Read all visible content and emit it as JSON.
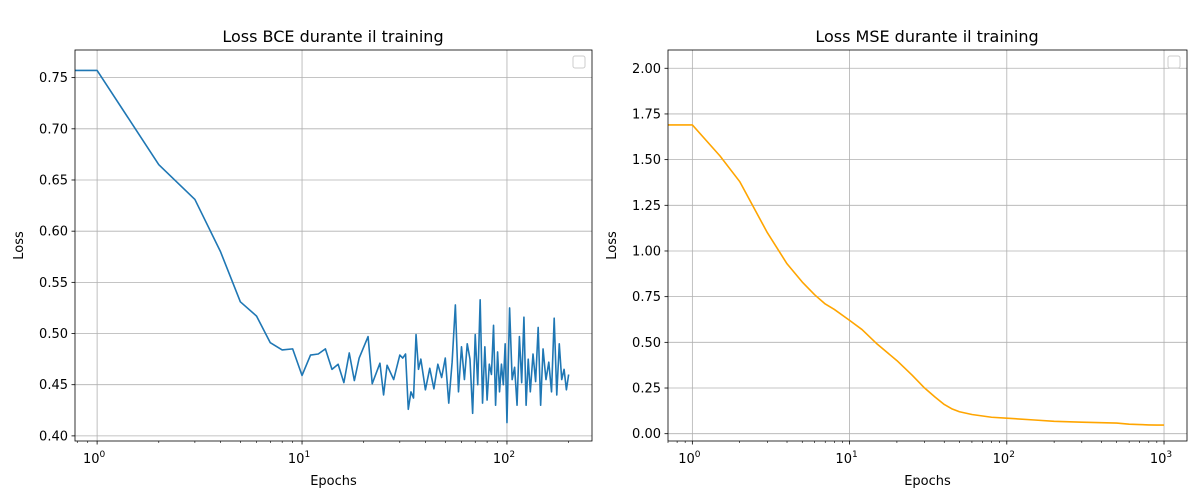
{
  "chart_data": [
    {
      "type": "line",
      "title": "Loss BCE durante il training",
      "xlabel": "Epochs",
      "ylabel": "Loss",
      "xscale": "log",
      "xlim": [
        0.78,
        260
      ],
      "ylim": [
        0.395,
        0.777
      ],
      "grid": true,
      "legend": "top-right, empty",
      "color": "#1f77b4",
      "x_ticks": [
        {
          "value": 1,
          "base": "10",
          "exp": "0"
        },
        {
          "value": 10,
          "base": "10",
          "exp": "1"
        },
        {
          "value": 100,
          "base": "10",
          "exp": "2"
        }
      ],
      "y_ticks": [
        {
          "value": 0.4,
          "label": "0.40"
        },
        {
          "value": 0.45,
          "label": "0.45"
        },
        {
          "value": 0.5,
          "label": "0.50"
        },
        {
          "value": 0.55,
          "label": "0.55"
        },
        {
          "value": 0.6,
          "label": "0.60"
        },
        {
          "value": 0.65,
          "label": "0.65"
        },
        {
          "value": 0.7,
          "label": "0.70"
        },
        {
          "value": 0.75,
          "label": "0.75"
        }
      ],
      "series": [
        {
          "x": [
            0.78,
            1,
            2,
            3,
            4,
            5,
            6,
            7,
            8,
            9,
            10,
            11,
            12,
            13,
            14,
            15,
            16,
            17,
            18,
            19,
            21,
            22,
            24,
            25,
            26,
            28,
            30,
            31,
            32,
            33,
            34,
            35,
            36,
            37,
            38,
            40,
            42,
            44,
            46,
            48,
            50,
            52,
            54,
            56,
            58,
            60,
            62,
            64,
            66,
            68,
            70,
            72,
            74,
            76,
            78,
            80,
            82,
            84,
            86,
            88,
            90,
            92,
            94,
            96,
            98,
            100,
            103,
            106,
            109,
            112,
            115,
            118,
            121,
            124,
            127,
            130,
            134,
            138,
            142,
            146,
            150,
            155,
            160,
            165,
            170,
            175,
            180,
            185,
            190,
            195,
            200
          ],
          "values": [
            0.757,
            0.757,
            0.665,
            0.631,
            0.58,
            0.531,
            0.517,
            0.491,
            0.484,
            0.485,
            0.459,
            0.479,
            0.48,
            0.485,
            0.465,
            0.47,
            0.452,
            0.481,
            0.454,
            0.476,
            0.497,
            0.451,
            0.471,
            0.44,
            0.469,
            0.455,
            0.479,
            0.476,
            0.48,
            0.426,
            0.443,
            0.437,
            0.499,
            0.465,
            0.475,
            0.445,
            0.466,
            0.446,
            0.47,
            0.457,
            0.476,
            0.432,
            0.472,
            0.528,
            0.443,
            0.487,
            0.455,
            0.49,
            0.475,
            0.422,
            0.499,
            0.45,
            0.533,
            0.432,
            0.487,
            0.435,
            0.47,
            0.46,
            0.508,
            0.43,
            0.482,
            0.443,
            0.47,
            0.45,
            0.49,
            0.413,
            0.525,
            0.455,
            0.467,
            0.43,
            0.497,
            0.452,
            0.516,
            0.43,
            0.475,
            0.443,
            0.48,
            0.453,
            0.506,
            0.43,
            0.485,
            0.455,
            0.472,
            0.443,
            0.515,
            0.44,
            0.49,
            0.455,
            0.465,
            0.445,
            0.46
          ]
        }
      ]
    },
    {
      "type": "line",
      "title": "Loss MSE durante il training",
      "xlabel": "Epochs",
      "ylabel": "Loss",
      "xscale": "log",
      "xlim": [
        0.7,
        1400
      ],
      "ylim": [
        -0.04,
        2.1
      ],
      "grid": true,
      "legend": "top-right, empty",
      "color": "#ffa500",
      "x_ticks": [
        {
          "value": 1,
          "base": "10",
          "exp": "0"
        },
        {
          "value": 10,
          "base": "10",
          "exp": "1"
        },
        {
          "value": 100,
          "base": "10",
          "exp": "2"
        },
        {
          "value": 1000,
          "base": "10",
          "exp": "3"
        }
      ],
      "y_ticks": [
        {
          "value": 0.0,
          "label": "0.00"
        },
        {
          "value": 0.25,
          "label": "0.25"
        },
        {
          "value": 0.5,
          "label": "0.50"
        },
        {
          "value": 0.75,
          "label": "0.75"
        },
        {
          "value": 1.0,
          "label": "1.00"
        },
        {
          "value": 1.25,
          "label": "1.25"
        },
        {
          "value": 1.5,
          "label": "1.50"
        },
        {
          "value": 1.75,
          "label": "1.75"
        },
        {
          "value": 2.0,
          "label": "2.00"
        }
      ],
      "series": [
        {
          "x": [
            0.7,
            1,
            1.5,
            2,
            3,
            4,
            5,
            6,
            7,
            8,
            10,
            12,
            15,
            20,
            25,
            30,
            35,
            40,
            45,
            50,
            60,
            80,
            100,
            150,
            200,
            300,
            400,
            500,
            600,
            700,
            800,
            900,
            1000
          ],
          "values": [
            1.69,
            1.69,
            1.52,
            1.38,
            1.1,
            0.93,
            0.83,
            0.76,
            0.71,
            0.68,
            0.62,
            0.57,
            0.49,
            0.4,
            0.32,
            0.25,
            0.2,
            0.16,
            0.135,
            0.12,
            0.105,
            0.09,
            0.085,
            0.075,
            0.068,
            0.063,
            0.06,
            0.058,
            0.052,
            0.05,
            0.048,
            0.047,
            0.047
          ]
        }
      ]
    }
  ]
}
